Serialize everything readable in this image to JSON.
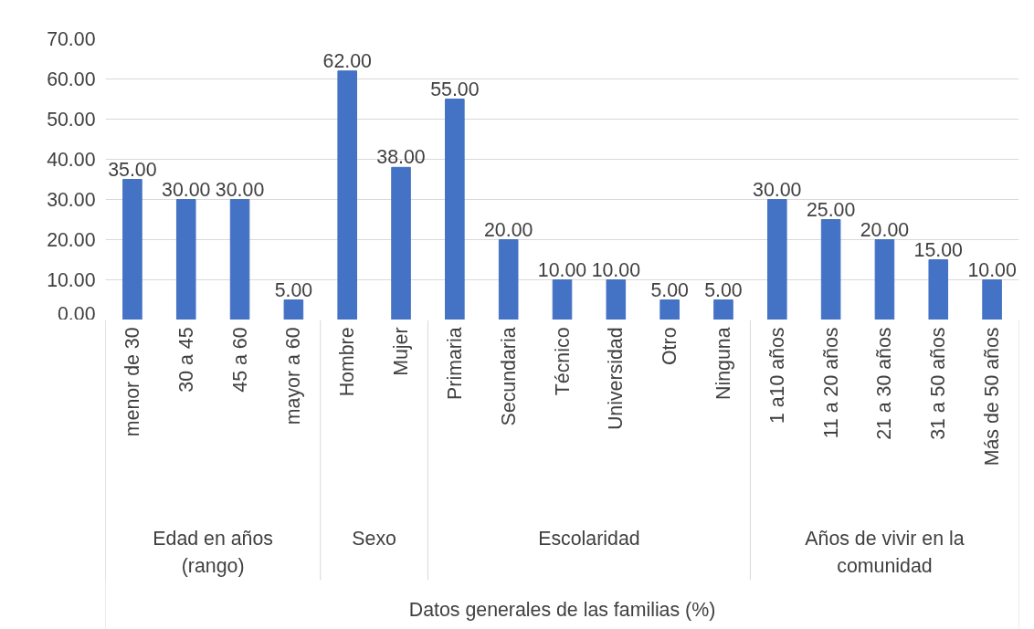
{
  "chart_data": {
    "type": "bar",
    "categories": [
      "menor de 30",
      "30 a 45",
      "45 a 60",
      "mayor a 60",
      "Hombre",
      "Mujer",
      "Primaria",
      "Secundaria",
      "Técnico",
      "Universidad",
      "Otro",
      "Ninguna",
      "1 a10 años",
      "11 a 20 años",
      "21 a 30 años",
      "31 a 50 años",
      "Más de 50 años"
    ],
    "values": [
      35,
      30,
      30,
      5,
      62,
      38,
      55,
      20,
      10,
      10,
      5,
      5,
      30,
      25,
      20,
      15,
      10
    ],
    "value_labels": [
      "35.00",
      "30.00",
      "30.00",
      "5.00",
      "62.00",
      "38.00",
      "55.00",
      "20.00",
      "10.00",
      "10.00",
      "5.00",
      "5.00",
      "30.00",
      "25.00",
      "20.00",
      "15.00",
      "10.00"
    ],
    "color": "#4472c4",
    "annotations": [
      "Edad en años\n(rango)",
      "Sexo",
      "Escolaridad",
      "Años de vivir en la\ncomunidad",
      "Datos generales de las familias (%)"
    ],
    "ylim": [
      0,
      70
    ],
    "yticks": [
      {
        "value": 0,
        "label": "0.00"
      },
      {
        "value": 10,
        "label": "10.00"
      },
      {
        "value": 20,
        "label": "20.00"
      },
      {
        "value": 30,
        "label": "30.00"
      },
      {
        "value": 40,
        "label": "40.00"
      },
      {
        "value": 50,
        "label": "50.00"
      },
      {
        "value": 60,
        "label": "60.00"
      },
      {
        "value": 70,
        "label": "70.00"
      }
    ],
    "grid": "y"
  }
}
